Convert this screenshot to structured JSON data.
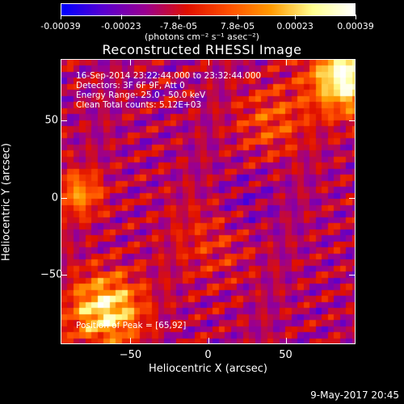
{
  "colorbar": {
    "ticks": [
      "-0.00039",
      "-0.00023",
      "-7.8e-05",
      "7.8e-05",
      "0.00023",
      "0.00039"
    ],
    "tick_values": [
      -0.00039,
      -0.00023,
      -7.8e-05,
      7.8e-05,
      0.00023,
      0.00039
    ],
    "range": [
      -0.00039,
      0.00039
    ],
    "units": "(photons cm⁻² s⁻¹ asec⁻²)",
    "colormap": [
      "#0000ff",
      "#5a00d0",
      "#9a0090",
      "#e01000",
      "#ff5000",
      "#ff9a00",
      "#ffff90",
      "#ffffff"
    ]
  },
  "chart_data": {
    "type": "heatmap",
    "title": "Reconstructed RHESSI Image",
    "xlabel": "Heliocentric X (arcsec)",
    "ylabel": "Heliocentric Y (arcsec)",
    "xlim": [
      -95,
      95
    ],
    "ylim": [
      -95,
      90
    ],
    "xticks": [
      -50,
      0,
      50
    ],
    "yticks": [
      -50,
      0,
      50
    ],
    "xtick_labels": [
      "−50",
      "0",
      "50"
    ],
    "ytick_labels": [
      "−50",
      "0",
      "50"
    ],
    "peak_position": [
      65,
      92
    ],
    "annotations": [
      "16-Sep-2014 23:22:44.000 to 23:32:44.000",
      "Detectors: 3F 6F 9F, Att 0",
      "Energy Range: 25.0 - 50.0 keV",
      "Clean     Total counts: 5.12E+03"
    ],
    "peak_label": "Position of Peak = [65,92]"
  },
  "footer": {
    "timestamp": "9-May-2017 20:45"
  }
}
